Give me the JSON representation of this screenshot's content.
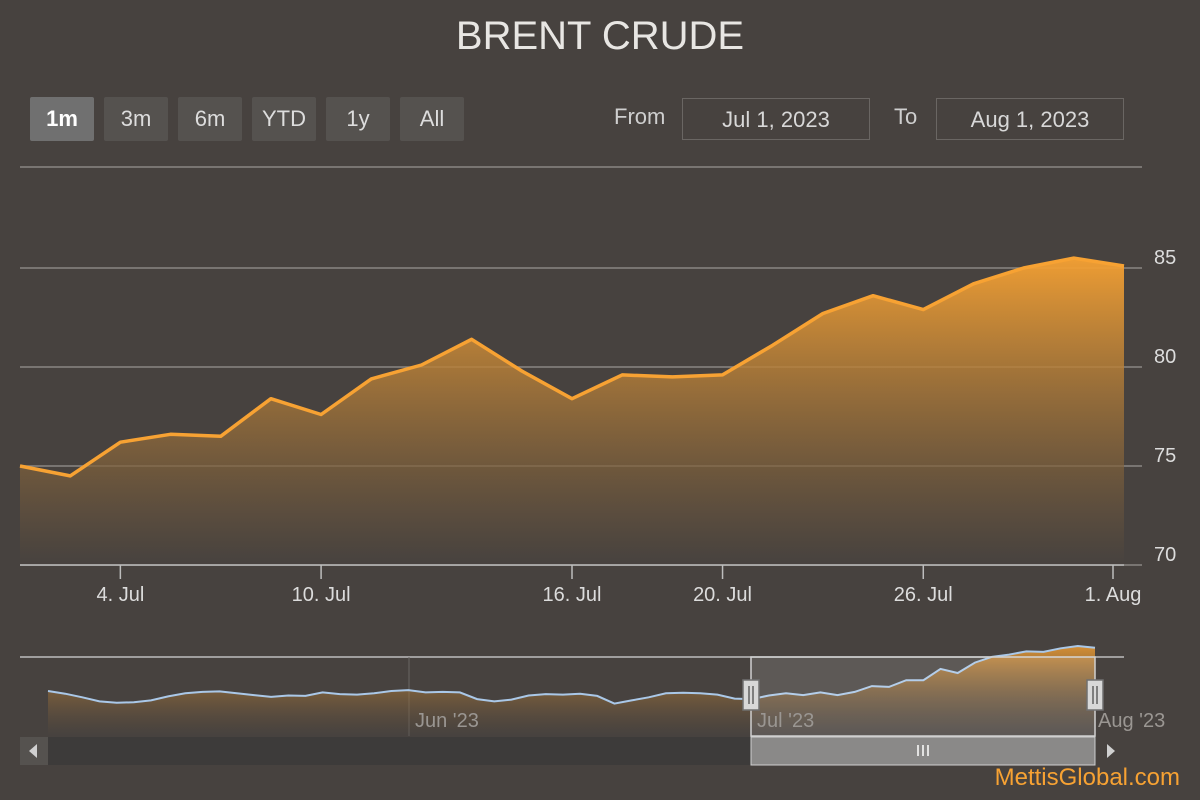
{
  "page": {
    "title": "BRENT CRUDE",
    "brand": "MettisGlobal.com"
  },
  "range_selector": {
    "buttons": [
      "1m",
      "3m",
      "6m",
      "YTD",
      "1y",
      "All"
    ],
    "selected": "1m",
    "from_label": "From",
    "from_value": "Jul 1, 2023",
    "to_label": "To",
    "to_value": "Aug 1, 2023"
  },
  "colors": {
    "line": "#f7a233",
    "navigator_line": "#aac8e8",
    "background": "#47423f"
  },
  "chart_data": {
    "type": "area",
    "title": "BRENT CRUDE",
    "x": [
      "Jun 30",
      "Jul 3",
      "Jul 4",
      "Jul 5",
      "Jul 6",
      "Jul 7",
      "Jul 10",
      "Jul 11",
      "Jul 12",
      "Jul 13",
      "Jul 14",
      "Jul 17",
      "Jul 18",
      "Jul 19",
      "Jul 20",
      "Jul 21",
      "Jul 24",
      "Jul 25",
      "Jul 26",
      "Jul 27",
      "Jul 28",
      "Jul 31",
      "Aug 1"
    ],
    "series": [
      {
        "values": [
          75.0,
          74.5,
          76.2,
          76.6,
          76.5,
          78.4,
          77.6,
          79.4,
          80.1,
          81.4,
          79.8,
          78.4,
          79.6,
          79.5,
          79.6,
          81.1,
          82.7,
          83.6,
          82.9,
          84.2,
          85.0,
          85.5,
          85.1
        ]
      }
    ],
    "x_ticks": [
      "4. Jul",
      "10. Jul",
      "16. Jul",
      "20. Jul",
      "26. Jul",
      "1. Aug"
    ],
    "y_ticks": [
      70,
      75,
      80,
      85
    ],
    "ylim": [
      69,
      90
    ],
    "grid": true,
    "navigator": {
      "labels": [
        "Jun '23",
        "Jul '23",
        "Aug '23"
      ],
      "series": [
        75.5,
        74.9,
        74.1,
        73.2,
        72.9,
        73.0,
        73.4,
        74.3,
        75.0,
        75.3,
        75.4,
        75.0,
        74.6,
        74.2,
        74.5,
        74.4,
        75.2,
        74.8,
        74.7,
        75.0,
        75.5,
        75.7,
        75.2,
        75.3,
        75.2,
        73.7,
        73.2,
        73.6,
        74.5,
        74.8,
        74.7,
        74.9,
        74.4,
        72.7,
        73.4,
        74.1,
        75.0,
        75.1,
        75.0,
        74.7,
        73.8,
        73.7,
        74.5,
        75.0,
        74.6,
        75.2,
        74.6,
        75.3,
        76.6,
        76.4,
        77.9,
        77.9,
        80.4,
        79.5,
        81.8,
        83.1,
        83.6,
        84.3,
        84.2,
        85.0,
        85.5,
        85.1
      ]
    }
  }
}
